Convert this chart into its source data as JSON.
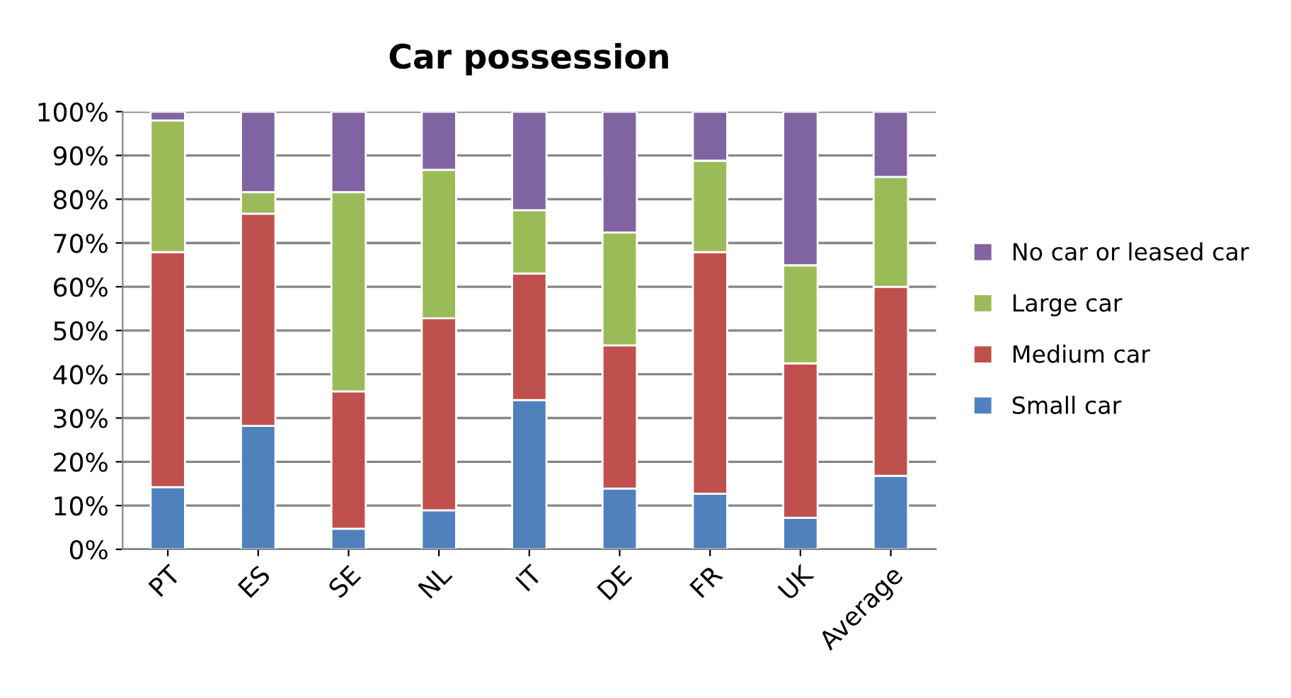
{
  "chart_data": {
    "type": "bar",
    "title": "Car possession",
    "stacked": true,
    "categories": [
      "PT",
      "ES",
      "SE",
      "NL",
      "IT",
      "DE",
      "FR",
      "UK",
      "Average"
    ],
    "series": [
      {
        "name": "Small car",
        "color": "#4f81bd",
        "values": [
          14.2,
          28.2,
          4.7,
          8.9,
          34.1,
          13.9,
          12.7,
          7.2,
          16.8
        ]
      },
      {
        "name": "Medium car",
        "color": "#c0504d",
        "values": [
          53.7,
          48.5,
          31.4,
          43.9,
          28.9,
          32.7,
          55.2,
          35.3,
          43.2
        ]
      },
      {
        "name": "Large car",
        "color": "#9bbb59",
        "values": [
          30.1,
          4.9,
          45.5,
          33.9,
          14.5,
          25.8,
          20.9,
          22.4,
          25.1
        ]
      },
      {
        "name": "No car or leased car",
        "color": "#8064a2",
        "values": [
          2.0,
          18.4,
          18.4,
          13.3,
          22.5,
          27.6,
          11.2,
          35.1,
          14.9
        ]
      }
    ],
    "ylim": [
      0,
      100
    ],
    "yticks": [
      {
        "value": 0,
        "label": "0%"
      },
      {
        "value": 10,
        "label": "10%"
      },
      {
        "value": 20,
        "label": "20%"
      },
      {
        "value": 30,
        "label": "30%"
      },
      {
        "value": 40,
        "label": "40%"
      },
      {
        "value": 50,
        "label": "50%"
      },
      {
        "value": 60,
        "label": "60%"
      },
      {
        "value": 70,
        "label": "70%"
      },
      {
        "value": 80,
        "label": "80%"
      },
      {
        "value": 90,
        "label": "90%"
      },
      {
        "value": 100,
        "label": "100%"
      }
    ],
    "grid": "y",
    "legend": "right"
  }
}
